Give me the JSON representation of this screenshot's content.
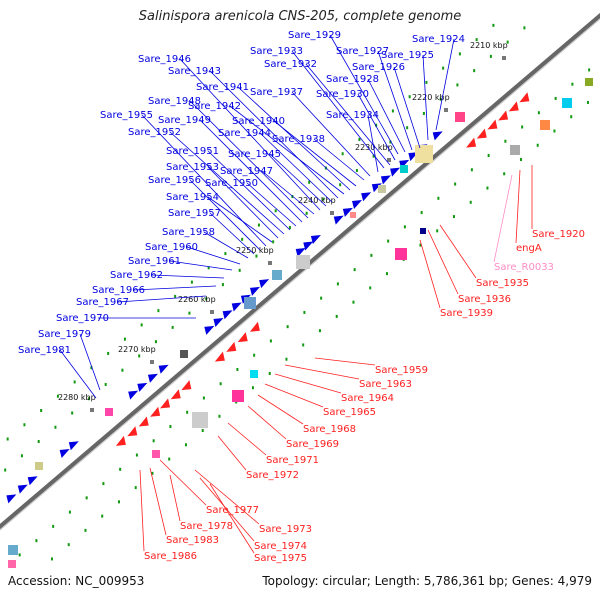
{
  "title": "Salinispora arenicola CNS-205, complete genome",
  "footer": {
    "accession": "Accession: NC_009953",
    "summary": "Topology: circular; Length: 5,786,361 bp; Genes: 4,979"
  },
  "kbp_ticks": [
    "2210 kbp",
    "2220 kbp",
    "2230 kbp",
    "2240 kbp",
    "2250 kbp",
    "2260 kbp",
    "2270 kbp",
    "2280 kbp"
  ],
  "colors": {
    "forward": "#0000e0",
    "reverse": "#ff2020",
    "rna": "#ff8cc6",
    "backbone": "#666666",
    "ticks": "#119911"
  },
  "forward_genes": [
    "Sare_1924",
    "Sare_1925",
    "Sare_1926",
    "Sare_1927",
    "Sare_1928",
    "Sare_1929",
    "Sare_1930",
    "Sare_1932",
    "Sare_1933",
    "Sare_1934",
    "Sare_1937",
    "Sare_1938",
    "Sare_1940",
    "Sare_1941",
    "Sare_1942",
    "Sare_1943",
    "Sare_1944",
    "Sare_1945",
    "Sare_1946",
    "Sare_1947",
    "Sare_1948",
    "Sare_1949",
    "Sare_1950",
    "Sare_1951",
    "Sare_1952",
    "Sare_1953",
    "Sare_1954",
    "Sare_1955",
    "Sare_1956",
    "Sare_1957",
    "Sare_1958",
    "Sare_1960",
    "Sare_1961",
    "Sare_1962",
    "Sare_1966",
    "Sare_1967",
    "Sare_1970",
    "Sare_1979",
    "Sare_1981"
  ],
  "reverse_genes": [
    "Sare_1920",
    "engA",
    "Sare_R0033",
    "Sare_1935",
    "Sare_1936",
    "Sare_1939",
    "Sare_1959",
    "Sare_1963",
    "Sare_1964",
    "Sare_1965",
    "Sare_1968",
    "Sare_1969",
    "Sare_1971",
    "Sare_1972",
    "Sare_1977",
    "Sare_1973",
    "Sare_1978",
    "Sare_1974",
    "Sare_1983",
    "Sare_1975",
    "Sare_1986"
  ]
}
